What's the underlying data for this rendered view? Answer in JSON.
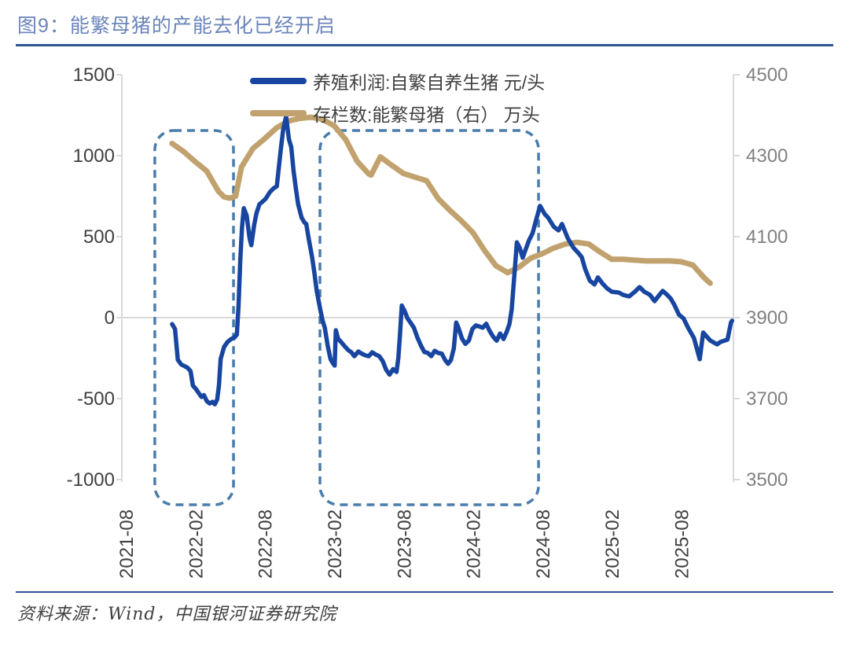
{
  "header": {
    "title": "图9：能繁母猪的产能去化已经开启"
  },
  "footer": {
    "source": "资料来源：Wind，中国银河证券研究院"
  },
  "colors": {
    "title_text": "#6B84BB",
    "rule": "#2E5596",
    "profit_line": "#1745A0",
    "sow_line": "#C1A26E",
    "highlight_box": "#4A7CAC",
    "axis_gray": "#D9D9D9",
    "left_tick_text": "#3F3F3F",
    "right_tick_text": "#808080",
    "x_tick_text": "#3F3F3F"
  },
  "chart_data": {
    "type": "line",
    "title": "图9：能繁母猪的产能去化已经开启",
    "legend_position": "top-center",
    "grid": "single horizontal gridline at left 0 / right 3900",
    "x_axis": {
      "note": "t = months since 2021-08",
      "tick_t": [
        0,
        6,
        12,
        18,
        24,
        30,
        36,
        42,
        48
      ],
      "tick_labels": [
        "2021-08",
        "2022-02",
        "2022-08",
        "2023-02",
        "2023-08",
        "2024-02",
        "2024-08",
        "2025-02",
        "2025-08"
      ]
    },
    "y_axis_left": {
      "label": "元/头",
      "ticks": [
        1500,
        1000,
        500,
        0,
        -500,
        -1000
      ],
      "range": [
        -1000,
        1500
      ]
    },
    "y_axis_right": {
      "label": "万头",
      "ticks": [
        4500,
        4300,
        4100,
        3900,
        3700,
        3500
      ],
      "range": [
        3500,
        4500
      ]
    },
    "series": [
      {
        "name": "养殖利润:自繁自养生猪 元/头",
        "axis": "left",
        "color": "#1745A0",
        "points": [
          [
            4.0,
            -40
          ],
          [
            4.25,
            -70
          ],
          [
            4.5,
            -260
          ],
          [
            4.8,
            -290
          ],
          [
            5.1,
            -300
          ],
          [
            5.35,
            -310
          ],
          [
            5.6,
            -330
          ],
          [
            5.8,
            -420
          ],
          [
            6.05,
            -440
          ],
          [
            6.3,
            -465
          ],
          [
            6.55,
            -490
          ],
          [
            6.75,
            -478
          ],
          [
            7.0,
            -515
          ],
          [
            7.25,
            -530
          ],
          [
            7.5,
            -520
          ],
          [
            7.7,
            -535
          ],
          [
            7.9,
            -505
          ],
          [
            8.05,
            -420
          ],
          [
            8.2,
            -255
          ],
          [
            8.5,
            -180
          ],
          [
            8.8,
            -150
          ],
          [
            9.1,
            -132
          ],
          [
            9.4,
            -122
          ],
          [
            9.6,
            -105
          ],
          [
            9.75,
            80
          ],
          [
            9.9,
            360
          ],
          [
            10.05,
            560
          ],
          [
            10.2,
            675
          ],
          [
            10.45,
            630
          ],
          [
            10.7,
            490
          ],
          [
            10.85,
            447
          ],
          [
            11.1,
            575
          ],
          [
            11.3,
            645
          ],
          [
            11.55,
            700
          ],
          [
            11.8,
            715
          ],
          [
            12.1,
            735
          ],
          [
            12.45,
            775
          ],
          [
            12.8,
            800
          ],
          [
            13.05,
            810
          ],
          [
            13.4,
            1040
          ],
          [
            13.6,
            1160
          ],
          [
            13.85,
            1243
          ],
          [
            14.1,
            1100
          ],
          [
            14.3,
            1053
          ],
          [
            14.5,
            908
          ],
          [
            14.7,
            796
          ],
          [
            14.9,
            699
          ],
          [
            15.2,
            617
          ],
          [
            15.45,
            587
          ],
          [
            15.6,
            578
          ],
          [
            15.8,
            490
          ],
          [
            16.1,
            374
          ],
          [
            16.3,
            277
          ],
          [
            16.5,
            165
          ],
          [
            16.8,
            53
          ],
          [
            17.0,
            -15
          ],
          [
            17.2,
            -63
          ],
          [
            17.45,
            -175
          ],
          [
            17.7,
            -257
          ],
          [
            17.9,
            -282
          ],
          [
            18.05,
            -296
          ],
          [
            18.15,
            -78
          ],
          [
            18.35,
            -130
          ],
          [
            18.6,
            -150
          ],
          [
            18.9,
            -175
          ],
          [
            19.2,
            -199
          ],
          [
            19.5,
            -214
          ],
          [
            19.75,
            -238
          ],
          [
            20.1,
            -209
          ],
          [
            20.4,
            -223
          ],
          [
            20.7,
            -233
          ],
          [
            21.0,
            -238
          ],
          [
            21.3,
            -214
          ],
          [
            21.6,
            -228
          ],
          [
            21.9,
            -238
          ],
          [
            22.2,
            -268
          ],
          [
            22.5,
            -322
          ],
          [
            22.8,
            -352
          ],
          [
            23.1,
            -318
          ],
          [
            23.4,
            -335
          ],
          [
            23.55,
            -250
          ],
          [
            23.7,
            -100
          ],
          [
            23.85,
            75
          ],
          [
            24.1,
            40
          ],
          [
            24.35,
            -5
          ],
          [
            24.6,
            -30
          ],
          [
            24.9,
            -62
          ],
          [
            25.2,
            -122
          ],
          [
            25.5,
            -172
          ],
          [
            25.8,
            -212
          ],
          [
            26.1,
            -218
          ],
          [
            26.4,
            -238
          ],
          [
            26.7,
            -205
          ],
          [
            27.0,
            -218
          ],
          [
            27.3,
            -222
          ],
          [
            27.6,
            -262
          ],
          [
            27.85,
            -285
          ],
          [
            28.1,
            -262
          ],
          [
            28.35,
            -190
          ],
          [
            28.55,
            -30
          ],
          [
            28.75,
            -62
          ],
          [
            29.05,
            -128
          ],
          [
            29.35,
            -162
          ],
          [
            29.65,
            -142
          ],
          [
            29.95,
            -70
          ],
          [
            30.25,
            -48
          ],
          [
            30.55,
            -55
          ],
          [
            30.85,
            -62
          ],
          [
            31.15,
            -38
          ],
          [
            31.45,
            -82
          ],
          [
            31.75,
            -118
          ],
          [
            32.05,
            -142
          ],
          [
            32.35,
            -98
          ],
          [
            32.65,
            -132
          ],
          [
            32.95,
            -82
          ],
          [
            33.15,
            -40
          ],
          [
            33.35,
            50
          ],
          [
            33.6,
            280
          ],
          [
            33.8,
            465
          ],
          [
            34.05,
            430
          ],
          [
            34.3,
            370
          ],
          [
            34.55,
            420
          ],
          [
            34.85,
            478
          ],
          [
            35.15,
            520
          ],
          [
            35.45,
            600
          ],
          [
            35.8,
            690
          ],
          [
            36.2,
            640
          ],
          [
            36.5,
            617
          ],
          [
            37.0,
            560
          ],
          [
            37.4,
            539
          ],
          [
            37.7,
            578
          ],
          [
            38.2,
            490
          ],
          [
            38.7,
            430
          ],
          [
            39.1,
            400
          ],
          [
            39.4,
            374
          ],
          [
            39.7,
            300
          ],
          [
            40.1,
            228
          ],
          [
            40.5,
            205
          ],
          [
            40.8,
            248
          ],
          [
            41.2,
            210
          ],
          [
            41.6,
            180
          ],
          [
            42.0,
            160
          ],
          [
            42.6,
            155
          ],
          [
            43.0,
            140
          ],
          [
            43.5,
            131
          ],
          [
            44.0,
            160
          ],
          [
            44.4,
            189
          ],
          [
            44.8,
            160
          ],
          [
            45.3,
            141
          ],
          [
            45.7,
            102
          ],
          [
            46.0,
            130
          ],
          [
            46.4,
            165
          ],
          [
            46.8,
            140
          ],
          [
            47.1,
            117
          ],
          [
            47.4,
            80
          ],
          [
            47.8,
            19
          ],
          [
            48.2,
            -5
          ],
          [
            48.6,
            -63
          ],
          [
            49.1,
            -126
          ],
          [
            49.6,
            -257
          ],
          [
            49.9,
            -92
          ],
          [
            50.5,
            -141
          ],
          [
            51.1,
            -165
          ],
          [
            51.4,
            -150
          ],
          [
            52.0,
            -136
          ],
          [
            52.3,
            -29
          ],
          [
            52.4,
            -19
          ]
        ]
      },
      {
        "name": "存栏数:能繁母猪（右） 万头",
        "axis": "right",
        "color": "#C1A26E",
        "points": [
          [
            4,
            4330
          ],
          [
            5,
            4310
          ],
          [
            6,
            4285
          ],
          [
            7,
            4262
          ],
          [
            8,
            4212
          ],
          [
            8.5,
            4198
          ],
          [
            9,
            4195
          ],
          [
            9.5,
            4200
          ],
          [
            10,
            4272
          ],
          [
            11,
            4318
          ],
          [
            12,
            4342
          ],
          [
            13,
            4368
          ],
          [
            14,
            4385
          ],
          [
            15,
            4392
          ],
          [
            16,
            4395
          ],
          [
            17,
            4390
          ],
          [
            18,
            4374
          ],
          [
            19,
            4340
          ],
          [
            20,
            4286
          ],
          [
            21,
            4255
          ],
          [
            21.2,
            4252
          ],
          [
            22,
            4297
          ],
          [
            23,
            4276
          ],
          [
            24,
            4256
          ],
          [
            25,
            4247
          ],
          [
            26,
            4238
          ],
          [
            27,
            4194
          ],
          [
            28,
            4165
          ],
          [
            29,
            4139
          ],
          [
            30,
            4110
          ],
          [
            31,
            4066
          ],
          [
            32,
            4028
          ],
          [
            33,
            4011
          ],
          [
            34,
            4025
          ],
          [
            35,
            4047
          ],
          [
            36,
            4058
          ],
          [
            37,
            4072
          ],
          [
            38,
            4082
          ],
          [
            39,
            4086
          ],
          [
            40,
            4082
          ],
          [
            41,
            4062
          ],
          [
            42,
            4044
          ],
          [
            43,
            4044
          ],
          [
            44,
            4042
          ],
          [
            45,
            4040
          ],
          [
            46,
            4040
          ],
          [
            47,
            4040
          ],
          [
            48,
            4038
          ],
          [
            49,
            4030
          ],
          [
            50,
            3998
          ],
          [
            50.5,
            3985
          ]
        ]
      }
    ],
    "annotations": [
      {
        "type": "dashed-rounded-rect",
        "color": "#4A7CAC",
        "t_from": 2.51,
        "t_to": 9.31,
        "note": "2021-10 至 2022-05 产能去化阶段"
      },
      {
        "type": "dashed-rounded-rect",
        "color": "#4A7CAC",
        "t_from": 16.78,
        "t_to": 35.67,
        "note": "2023-01 至 2024-07 产能去化阶段"
      }
    ]
  }
}
